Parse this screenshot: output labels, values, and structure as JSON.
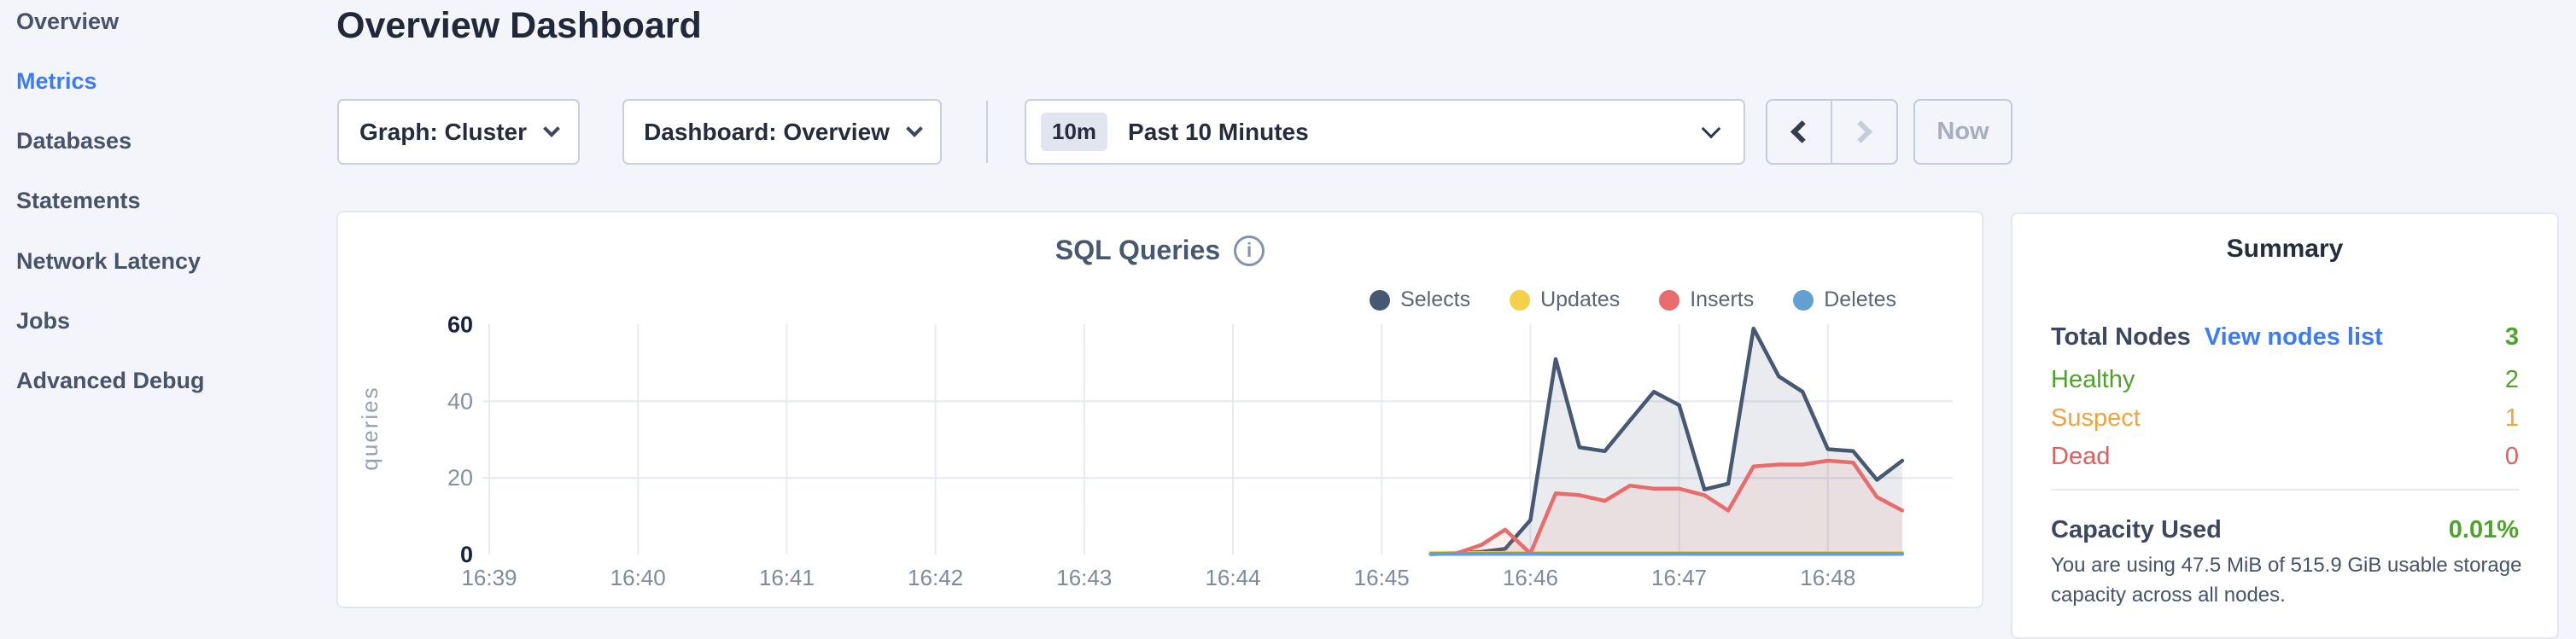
{
  "sidebar": {
    "items": [
      {
        "label": "Overview",
        "active": false
      },
      {
        "label": "Metrics",
        "active": true
      },
      {
        "label": "Databases",
        "active": false
      },
      {
        "label": "Statements",
        "active": false
      },
      {
        "label": "Network Latency",
        "active": false
      },
      {
        "label": "Jobs",
        "active": false
      },
      {
        "label": "Advanced Debug",
        "active": false
      }
    ],
    "active_color": "#3b7cf6"
  },
  "header": {
    "title": "Overview Dashboard"
  },
  "toolbar": {
    "graph_dropdown": "Graph: Cluster",
    "dashboard_dropdown": "Dashboard: Overview",
    "time_badge": "10m",
    "time_label": "Past 10 Minutes",
    "now_label": "Now"
  },
  "chart_data": {
    "type": "area",
    "title": "SQL Queries",
    "ylabel": "queries",
    "xlabel": "",
    "x_ticks": [
      "16:39",
      "16:40",
      "16:41",
      "16:42",
      "16:43",
      "16:44",
      "16:45",
      "16:46",
      "16:47",
      "16:48"
    ],
    "y_ticks": [
      0,
      20,
      40,
      60
    ],
    "ylim": [
      0,
      60
    ],
    "x_minutes_domain": [
      0,
      9.84
    ],
    "grid": true,
    "legend_position": "top-right",
    "series": [
      {
        "name": "Selects",
        "color": "#475872",
        "fill": "rgba(71,88,114,0.12)",
        "points": [
          [
            6.33,
            0.4
          ],
          [
            6.5,
            0.4
          ],
          [
            6.67,
            0.7
          ],
          [
            6.83,
            1.5
          ],
          [
            7.0,
            9
          ],
          [
            7.17,
            51
          ],
          [
            7.33,
            28
          ],
          [
            7.5,
            27
          ],
          [
            7.67,
            35
          ],
          [
            7.83,
            42.5
          ],
          [
            8.0,
            39
          ],
          [
            8.17,
            17
          ],
          [
            8.33,
            18.5
          ],
          [
            8.5,
            59
          ],
          [
            8.67,
            46.5
          ],
          [
            8.83,
            42.5
          ],
          [
            9.0,
            27.5
          ],
          [
            9.17,
            27
          ],
          [
            9.33,
            19.5
          ],
          [
            9.5,
            24.5
          ]
        ]
      },
      {
        "name": "Updates",
        "color": "#f5d04a",
        "fill": "rgba(245,208,74,0.10)",
        "points": [
          [
            6.33,
            0.4
          ],
          [
            9.5,
            0.4
          ]
        ]
      },
      {
        "name": "Inserts",
        "color": "#e86c6c",
        "fill": "rgba(232,108,108,0.10)",
        "points": [
          [
            6.33,
            0.1
          ],
          [
            6.5,
            0.3
          ],
          [
            6.67,
            2.5
          ],
          [
            6.83,
            6.5
          ],
          [
            7.0,
            0.3
          ],
          [
            7.17,
            16
          ],
          [
            7.33,
            15.5
          ],
          [
            7.5,
            14
          ],
          [
            7.67,
            18
          ],
          [
            7.83,
            17.2
          ],
          [
            8.0,
            17.2
          ],
          [
            8.17,
            15.5
          ],
          [
            8.33,
            11.5
          ],
          [
            8.5,
            23
          ],
          [
            8.67,
            23.5
          ],
          [
            8.83,
            23.5
          ],
          [
            9.0,
            24.5
          ],
          [
            9.17,
            24
          ],
          [
            9.33,
            15
          ],
          [
            9.5,
            11.5
          ]
        ]
      },
      {
        "name": "Deletes",
        "color": "#61a0d0",
        "fill": "rgba(97,160,208,0.10)",
        "points": [
          [
            6.33,
            0.15
          ],
          [
            9.5,
            0.15
          ]
        ]
      }
    ]
  },
  "summary": {
    "title": "Summary",
    "total_nodes_label": "Total Nodes",
    "view_nodes_link": "View nodes list",
    "total_nodes_value": "3",
    "total_nodes_color": "#4fa32b",
    "rows": [
      {
        "label": "Healthy",
        "value": "2",
        "color": "#4fa32b"
      },
      {
        "label": "Suspect",
        "value": "1",
        "color": "#f1a33c"
      },
      {
        "label": "Dead",
        "value": "0",
        "color": "#e25d5d"
      }
    ],
    "capacity_label": "Capacity Used",
    "capacity_value": "0.01%",
    "capacity_color": "#4fa32b",
    "capacity_desc": "You are using 47.5 MiB of 515.9 GiB usable storage capacity across all nodes."
  }
}
